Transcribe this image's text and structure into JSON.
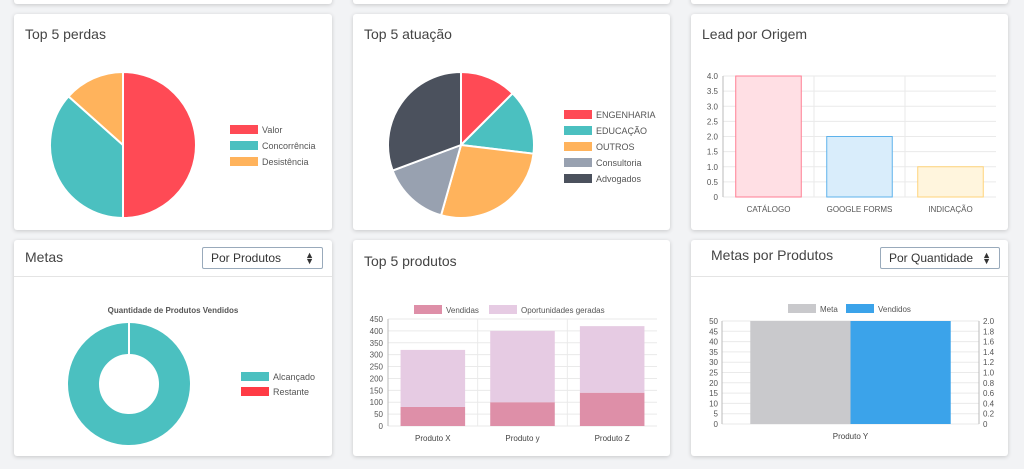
{
  "cards": {
    "perdas": {
      "title": "Top 5 perdas"
    },
    "atuacao": {
      "title": "Top 5 atuação"
    },
    "lead": {
      "title": "Lead por Origem"
    },
    "metas": {
      "title": "Metas",
      "select": "Por Produtos"
    },
    "produtos": {
      "title": "Top 5 produtos"
    },
    "metas_prod": {
      "title": "Metas por Produtos",
      "select": "Por Quantidade"
    }
  },
  "chart_data": [
    {
      "type": "pie",
      "labels": [
        "Valor",
        "Concorrência",
        "Desistência"
      ],
      "values": [
        50,
        36.6,
        13.4
      ],
      "colors": [
        "#ff4a55",
        "#4bc0c0",
        "#ffb35c"
      ]
    },
    {
      "type": "pie",
      "labels": [
        "ENGENHARIA",
        "EDUCAÇÃO",
        "OUTROS",
        "Consultoria",
        "Advogados"
      ],
      "values": [
        12.5,
        14.4,
        27.5,
        14.9,
        30.7
      ],
      "colors": [
        "#ff4a55",
        "#4bc0c0",
        "#ffb35c",
        "#98a1b0",
        "#4b515d"
      ]
    },
    {
      "type": "bar",
      "categories": [
        "CATÁLOGO",
        "GOOGLE FORMS",
        "INDICAÇÃO"
      ],
      "values": [
        4,
        2,
        1
      ],
      "ylim": [
        0,
        4
      ],
      "yticks": [
        "0",
        "0.5",
        "1.0",
        "1.5",
        "2.0",
        "2.5",
        "3.0",
        "3.5",
        "4.0"
      ],
      "fills": [
        "#ffdfe4",
        "#d9edfb",
        "#fff5dd"
      ],
      "strokes": [
        "#ff7d93",
        "#5db2eb",
        "#ffd37a"
      ]
    },
    {
      "type": "pie",
      "title": "Quantidade de Produtos Vendidos",
      "labels": [
        "Alcançado",
        "Restante"
      ],
      "values": [
        100,
        0
      ],
      "colors": [
        "#4bc0c0",
        "#ff3b45"
      ]
    },
    {
      "type": "bar",
      "categories": [
        "Produto X",
        "Produto y",
        "Produto Z"
      ],
      "series": [
        {
          "name": "Vendidas",
          "values": [
            80,
            100,
            140
          ],
          "color": "#de8fa8"
        },
        {
          "name": "Oportunidades geradas",
          "values": [
            240,
            300,
            280
          ],
          "color": "#e6cbe3"
        }
      ],
      "ylim": [
        0,
        450
      ],
      "yticks": [
        "0",
        "50",
        "100",
        "150",
        "200",
        "250",
        "300",
        "350",
        "400",
        "450"
      ]
    },
    {
      "type": "bar",
      "categories": [
        "Produto Y"
      ],
      "series": [
        {
          "name": "Meta",
          "values": [
            50
          ],
          "color": "#c9c9cc"
        },
        {
          "name": "Vendidos",
          "values": [
            2
          ],
          "color": "#3ba3ea"
        }
      ],
      "ylim_left": [
        0,
        50
      ],
      "ylim_right": [
        0,
        2
      ],
      "yticks_left": [
        "0",
        "5",
        "10",
        "15",
        "20",
        "25",
        "30",
        "35",
        "40",
        "45",
        "50"
      ],
      "yticks_right": [
        "0",
        "0.2",
        "0.4",
        "0.6",
        "0.8",
        "1.0",
        "1.2",
        "1.4",
        "1.6",
        "1.8",
        "2.0"
      ]
    }
  ]
}
